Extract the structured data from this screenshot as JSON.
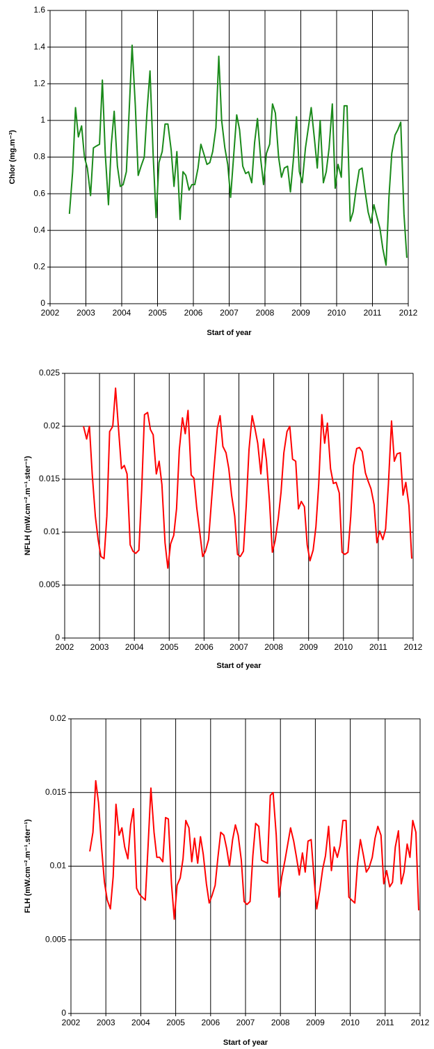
{
  "chart_data": [
    {
      "type": "line",
      "y_label": "Chlor (mg.m⁻³)",
      "x_label": "Start of year",
      "color": "#1a8a1a",
      "grid": true,
      "xlim": [
        2002,
        2012
      ],
      "xticks": [
        2002,
        2003,
        2004,
        2005,
        2006,
        2007,
        2008,
        2009,
        2010,
        2011,
        2012
      ],
      "ylim": [
        0,
        1.6
      ],
      "yticks": [
        0,
        0.2,
        0.4,
        0.6,
        0.8,
        1,
        1.2,
        1.4,
        1.6
      ],
      "x": [
        2002.54,
        2002.63,
        2002.71,
        2002.79,
        2002.88,
        2002.96,
        2003.04,
        2003.13,
        2003.21,
        2003.29,
        2003.38,
        2003.46,
        2003.54,
        2003.63,
        2003.71,
        2003.79,
        2003.88,
        2003.96,
        2004.04,
        2004.13,
        2004.21,
        2004.29,
        2004.38,
        2004.46,
        2004.54,
        2004.63,
        2004.71,
        2004.79,
        2004.88,
        2004.96,
        2005.04,
        2005.13,
        2005.21,
        2005.29,
        2005.38,
        2005.46,
        2005.54,
        2005.63,
        2005.71,
        2005.79,
        2005.88,
        2005.96,
        2006.04,
        2006.13,
        2006.21,
        2006.29,
        2006.38,
        2006.46,
        2006.54,
        2006.63,
        2006.71,
        2006.79,
        2006.88,
        2006.96,
        2007.04,
        2007.13,
        2007.21,
        2007.29,
        2007.38,
        2007.46,
        2007.54,
        2007.63,
        2007.71,
        2007.79,
        2007.88,
        2007.96,
        2008.04,
        2008.13,
        2008.21,
        2008.29,
        2008.38,
        2008.46,
        2008.54,
        2008.63,
        2008.71,
        2008.79,
        2008.88,
        2008.96,
        2009.04,
        2009.13,
        2009.21,
        2009.29,
        2009.38,
        2009.46,
        2009.54,
        2009.63,
        2009.71,
        2009.79,
        2009.88,
        2009.96,
        2010.04,
        2010.13,
        2010.21,
        2010.29,
        2010.38,
        2010.46,
        2010.54,
        2010.63,
        2010.71,
        2010.79,
        2010.88,
        2010.96,
        2011.04,
        2011.13,
        2011.21,
        2011.29,
        2011.38,
        2011.46,
        2011.54,
        2011.63,
        2011.71,
        2011.79,
        2011.88,
        2011.96
      ],
      "values": [
        0.49,
        0.72,
        1.07,
        0.91,
        0.97,
        0.8,
        0.74,
        0.59,
        0.85,
        0.86,
        0.87,
        1.22,
        0.82,
        0.54,
        0.87,
        1.05,
        0.75,
        0.64,
        0.65,
        0.72,
        1.06,
        1.41,
        1.08,
        0.7,
        0.75,
        0.8,
        1.06,
        1.27,
        0.8,
        0.47,
        0.77,
        0.83,
        0.98,
        0.98,
        0.84,
        0.64,
        0.83,
        0.46,
        0.72,
        0.7,
        0.62,
        0.65,
        0.65,
        0.74,
        0.87,
        0.82,
        0.76,
        0.77,
        0.83,
        0.96,
        1.35,
        1,
        0.85,
        0.76,
        0.58,
        0.82,
        1.03,
        0.95,
        0.75,
        0.71,
        0.72,
        0.66,
        0.88,
        1.01,
        0.79,
        0.65,
        0.82,
        0.87,
        1.09,
        1.04,
        0.8,
        0.69,
        0.74,
        0.75,
        0.61,
        0.78,
        1.02,
        0.72,
        0.66,
        0.85,
        0.96,
        1.07,
        0.9,
        0.74,
        1,
        0.66,
        0.72,
        0.85,
        1.09,
        0.63,
        0.76,
        0.69,
        1.08,
        1.08,
        0.45,
        0.5,
        0.62,
        0.73,
        0.74,
        0.62,
        0.5,
        0.44,
        0.54,
        0.47,
        0.41,
        0.3,
        0.21,
        0.58,
        0.82,
        0.92,
        0.95,
        0.99,
        0.49,
        0.25
      ]
    },
    {
      "type": "line",
      "y_label": "NFLH (mW.cm⁻².m⁻¹.ster⁻¹)",
      "x_label": "Start of year",
      "color": "#ff0000",
      "grid": true,
      "xlim": [
        2002,
        2012
      ],
      "xticks": [
        2002,
        2003,
        2004,
        2005,
        2006,
        2007,
        2008,
        2009,
        2010,
        2011,
        2012
      ],
      "ylim": [
        0,
        0.025
      ],
      "yticks": [
        0,
        0.005,
        0.01,
        0.015,
        0.02,
        0.025
      ],
      "x": [
        2002.54,
        2002.63,
        2002.71,
        2002.79,
        2002.88,
        2002.96,
        2003.04,
        2003.13,
        2003.21,
        2003.29,
        2003.38,
        2003.46,
        2003.54,
        2003.63,
        2003.71,
        2003.79,
        2003.88,
        2003.96,
        2004.04,
        2004.13,
        2004.21,
        2004.29,
        2004.38,
        2004.46,
        2004.54,
        2004.63,
        2004.71,
        2004.79,
        2004.88,
        2004.96,
        2005.04,
        2005.13,
        2005.21,
        2005.29,
        2005.38,
        2005.46,
        2005.54,
        2005.63,
        2005.71,
        2005.79,
        2005.88,
        2005.96,
        2006.04,
        2006.13,
        2006.21,
        2006.29,
        2006.38,
        2006.46,
        2006.54,
        2006.63,
        2006.71,
        2006.79,
        2006.88,
        2006.96,
        2007.04,
        2007.13,
        2007.21,
        2007.29,
        2007.38,
        2007.46,
        2007.54,
        2007.63,
        2007.71,
        2007.79,
        2007.88,
        2007.96,
        2008.04,
        2008.13,
        2008.21,
        2008.29,
        2008.38,
        2008.46,
        2008.54,
        2008.63,
        2008.71,
        2008.79,
        2008.88,
        2008.96,
        2009.04,
        2009.13,
        2009.21,
        2009.29,
        2009.38,
        2009.46,
        2009.54,
        2009.63,
        2009.71,
        2009.79,
        2009.88,
        2009.96,
        2010.04,
        2010.13,
        2010.21,
        2010.29,
        2010.38,
        2010.46,
        2010.54,
        2010.63,
        2010.71,
        2010.79,
        2010.88,
        2010.96,
        2011.04,
        2011.13,
        2011.21,
        2011.29,
        2011.38,
        2011.46,
        2011.54,
        2011.63,
        2011.71,
        2011.79,
        2011.88,
        2011.96
      ],
      "values": [
        0.02,
        0.0188,
        0.02,
        0.0155,
        0.0115,
        0.0093,
        0.0077,
        0.0075,
        0.0115,
        0.0195,
        0.02,
        0.0236,
        0.02,
        0.016,
        0.0163,
        0.0155,
        0.0088,
        0.0082,
        0.008,
        0.0083,
        0.014,
        0.0211,
        0.0213,
        0.0197,
        0.0192,
        0.0155,
        0.0167,
        0.0145,
        0.009,
        0.0066,
        0.0089,
        0.0097,
        0.0122,
        0.0178,
        0.0208,
        0.0193,
        0.0215,
        0.0154,
        0.0151,
        0.0123,
        0.0099,
        0.0077,
        0.0082,
        0.0093,
        0.0128,
        0.0162,
        0.0198,
        0.021,
        0.0181,
        0.0175,
        0.016,
        0.0135,
        0.0115,
        0.0079,
        0.0077,
        0.0082,
        0.0125,
        0.0178,
        0.021,
        0.0198,
        0.0184,
        0.0155,
        0.0188,
        0.0168,
        0.0128,
        0.0081,
        0.0092,
        0.0113,
        0.0138,
        0.0175,
        0.0195,
        0.02,
        0.0169,
        0.0167,
        0.0122,
        0.0129,
        0.0124,
        0.0088,
        0.0073,
        0.0083,
        0.0105,
        0.0145,
        0.0211,
        0.0184,
        0.0203,
        0.016,
        0.0146,
        0.0147,
        0.0137,
        0.0081,
        0.0079,
        0.0081,
        0.0115,
        0.0163,
        0.0179,
        0.018,
        0.0176,
        0.0156,
        0.0148,
        0.0141,
        0.0126,
        0.009,
        0.0101,
        0.0093,
        0.0103,
        0.0145,
        0.0205,
        0.0167,
        0.0174,
        0.0175,
        0.0135,
        0.0147,
        0.0125,
        0.0075
      ]
    },
    {
      "type": "line",
      "y_label": "FLH (mW.cm⁻².m⁻¹.ster⁻¹)",
      "x_label": "Start of year",
      "color": "#ff0000",
      "grid": true,
      "xlim": [
        2002,
        2012
      ],
      "xticks": [
        2002,
        2003,
        2004,
        2005,
        2006,
        2007,
        2008,
        2009,
        2010,
        2011,
        2012
      ],
      "ylim": [
        0,
        0.02
      ],
      "yticks": [
        0,
        0.005,
        0.01,
        0.015,
        0.02
      ],
      "x": [
        2002.54,
        2002.63,
        2002.71,
        2002.79,
        2002.88,
        2002.96,
        2003.04,
        2003.13,
        2003.21,
        2003.29,
        2003.38,
        2003.46,
        2003.54,
        2003.63,
        2003.71,
        2003.79,
        2003.88,
        2003.96,
        2004.04,
        2004.13,
        2004.21,
        2004.29,
        2004.38,
        2004.46,
        2004.54,
        2004.63,
        2004.71,
        2004.79,
        2004.88,
        2004.96,
        2005.04,
        2005.13,
        2005.21,
        2005.29,
        2005.38,
        2005.46,
        2005.54,
        2005.63,
        2005.71,
        2005.79,
        2005.88,
        2005.96,
        2006.04,
        2006.13,
        2006.21,
        2006.29,
        2006.38,
        2006.46,
        2006.54,
        2006.63,
        2006.71,
        2006.79,
        2006.88,
        2006.96,
        2007.04,
        2007.13,
        2007.21,
        2007.29,
        2007.38,
        2007.46,
        2007.54,
        2007.63,
        2007.71,
        2007.79,
        2007.88,
        2007.96,
        2008.04,
        2008.13,
        2008.21,
        2008.29,
        2008.38,
        2008.46,
        2008.54,
        2008.63,
        2008.71,
        2008.79,
        2008.88,
        2008.96,
        2009.04,
        2009.13,
        2009.21,
        2009.29,
        2009.38,
        2009.46,
        2009.54,
        2009.63,
        2009.71,
        2009.79,
        2009.88,
        2009.96,
        2010.04,
        2010.13,
        2010.21,
        2010.29,
        2010.38,
        2010.46,
        2010.54,
        2010.63,
        2010.71,
        2010.79,
        2010.88,
        2010.96,
        2011.04,
        2011.13,
        2011.21,
        2011.29,
        2011.38,
        2011.46,
        2011.54,
        2011.63,
        2011.71,
        2011.79,
        2011.88,
        2011.96
      ],
      "values": [
        0.011,
        0.0123,
        0.0158,
        0.0143,
        0.0112,
        0.0089,
        0.0077,
        0.0071,
        0.0093,
        0.0142,
        0.0121,
        0.0126,
        0.0113,
        0.0105,
        0.0128,
        0.0139,
        0.0085,
        0.0081,
        0.0079,
        0.0077,
        0.0114,
        0.0153,
        0.0123,
        0.0106,
        0.0106,
        0.0103,
        0.0133,
        0.0132,
        0.0088,
        0.0064,
        0.0087,
        0.0092,
        0.0105,
        0.0131,
        0.0126,
        0.0103,
        0.0119,
        0.0102,
        0.012,
        0.0108,
        0.0088,
        0.0075,
        0.008,
        0.0087,
        0.0106,
        0.0123,
        0.0121,
        0.0112,
        0.01,
        0.0118,
        0.0128,
        0.0121,
        0.0104,
        0.0076,
        0.0074,
        0.0076,
        0.0107,
        0.0129,
        0.0127,
        0.0104,
        0.0103,
        0.0102,
        0.0148,
        0.015,
        0.0121,
        0.0079,
        0.0093,
        0.0104,
        0.0115,
        0.0126,
        0.0117,
        0.0106,
        0.0094,
        0.0109,
        0.0096,
        0.0117,
        0.0118,
        0.0093,
        0.0071,
        0.0084,
        0.0098,
        0.0107,
        0.0127,
        0.0097,
        0.0113,
        0.0106,
        0.0114,
        0.0131,
        0.0131,
        0.0079,
        0.0077,
        0.0075,
        0.0102,
        0.0118,
        0.0107,
        0.0096,
        0.0099,
        0.0106,
        0.0119,
        0.0127,
        0.0121,
        0.0088,
        0.0097,
        0.0086,
        0.0089,
        0.0113,
        0.0124,
        0.0088,
        0.0096,
        0.0115,
        0.0106,
        0.0131,
        0.0123,
        0.007
      ]
    }
  ]
}
